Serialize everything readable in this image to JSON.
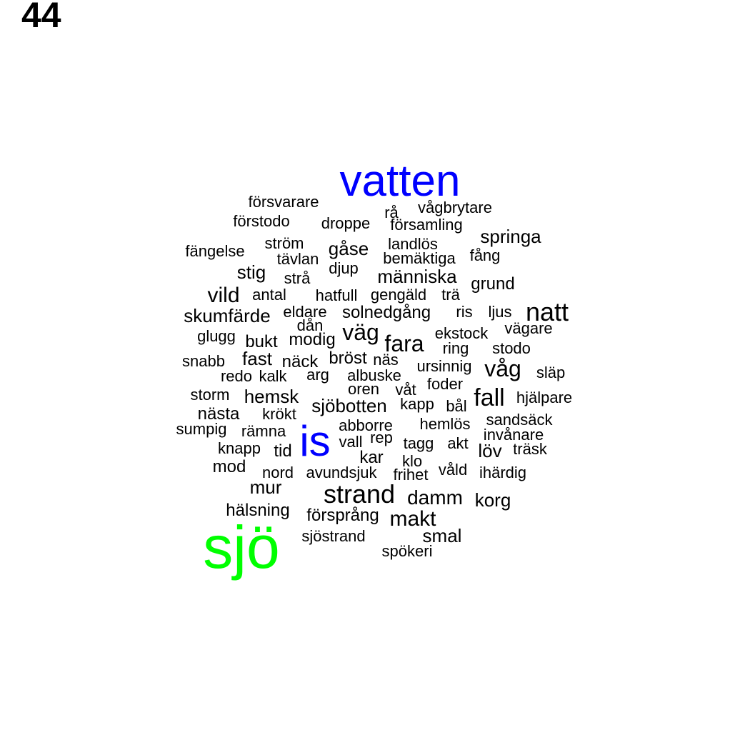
{
  "page_number": "44",
  "colors": {
    "default": "#000000",
    "highlight_blue": "#0000ff",
    "highlight_green": "#00ff00"
  },
  "words": [
    {
      "text": "vatten",
      "color": "#0000ff"
    },
    {
      "text": "försvarare"
    },
    {
      "text": "rå"
    },
    {
      "text": "vågbrytare"
    },
    {
      "text": "förstodo"
    },
    {
      "text": "droppe"
    },
    {
      "text": "församling"
    },
    {
      "text": "springa"
    },
    {
      "text": "ström"
    },
    {
      "text": "landlös"
    },
    {
      "text": "fängelse"
    },
    {
      "text": "gåse"
    },
    {
      "text": "tävlan"
    },
    {
      "text": "bemäktiga"
    },
    {
      "text": "fång"
    },
    {
      "text": "stig"
    },
    {
      "text": "djup"
    },
    {
      "text": "strå"
    },
    {
      "text": "människa"
    },
    {
      "text": "grund"
    },
    {
      "text": "vild"
    },
    {
      "text": "antal"
    },
    {
      "text": "hatfull"
    },
    {
      "text": "gengäld"
    },
    {
      "text": "trä"
    },
    {
      "text": "skumfärde"
    },
    {
      "text": "eldare"
    },
    {
      "text": "solnedgång"
    },
    {
      "text": "ris"
    },
    {
      "text": "ljus"
    },
    {
      "text": "natt"
    },
    {
      "text": "dån"
    },
    {
      "text": "glugg"
    },
    {
      "text": "modig"
    },
    {
      "text": "väg"
    },
    {
      "text": "ekstock"
    },
    {
      "text": "vägare"
    },
    {
      "text": "bukt"
    },
    {
      "text": "fara"
    },
    {
      "text": "ring"
    },
    {
      "text": "stodo"
    },
    {
      "text": "snabb"
    },
    {
      "text": "fast"
    },
    {
      "text": "näck"
    },
    {
      "text": "bröst"
    },
    {
      "text": "näs"
    },
    {
      "text": "ursinnig"
    },
    {
      "text": "våg"
    },
    {
      "text": "släp"
    },
    {
      "text": "redo"
    },
    {
      "text": "kalk"
    },
    {
      "text": "arg"
    },
    {
      "text": "albuske"
    },
    {
      "text": "foder"
    },
    {
      "text": "oren"
    },
    {
      "text": "våt"
    },
    {
      "text": "storm"
    },
    {
      "text": "hemsk"
    },
    {
      "text": "fall"
    },
    {
      "text": "hjälpare"
    },
    {
      "text": "sjöbotten"
    },
    {
      "text": "kapp"
    },
    {
      "text": "bål"
    },
    {
      "text": "nästa"
    },
    {
      "text": "krökt"
    },
    {
      "text": "abborre"
    },
    {
      "text": "hemlös"
    },
    {
      "text": "sandsäck"
    },
    {
      "text": "sumpig"
    },
    {
      "text": "rämna"
    },
    {
      "text": "invånare"
    },
    {
      "text": "is",
      "color": "#0000ff"
    },
    {
      "text": "vall"
    },
    {
      "text": "rep"
    },
    {
      "text": "tagg"
    },
    {
      "text": "akt"
    },
    {
      "text": "knapp"
    },
    {
      "text": "tid"
    },
    {
      "text": "löv"
    },
    {
      "text": "träsk"
    },
    {
      "text": "kar"
    },
    {
      "text": "klo"
    },
    {
      "text": "mod"
    },
    {
      "text": "nord"
    },
    {
      "text": "avundsjuk"
    },
    {
      "text": "frihet"
    },
    {
      "text": "våld"
    },
    {
      "text": "ihärdig"
    },
    {
      "text": "mur"
    },
    {
      "text": "strand"
    },
    {
      "text": "damm"
    },
    {
      "text": "korg"
    },
    {
      "text": "hälsning"
    },
    {
      "text": "försprång"
    },
    {
      "text": "makt"
    },
    {
      "text": "sjö",
      "color": "#00ff00"
    },
    {
      "text": "sjöstrand"
    },
    {
      "text": "smal"
    },
    {
      "text": "spökeri"
    }
  ]
}
